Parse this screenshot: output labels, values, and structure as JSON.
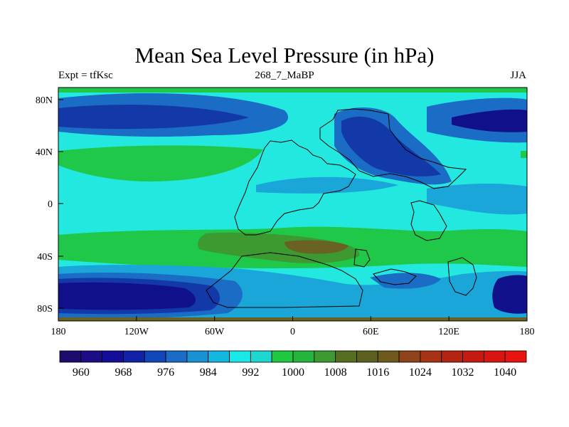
{
  "title": "Mean Sea Level Pressure (in hPa)",
  "subtitle_left": "Expt = tfKsc",
  "subtitle_center": "268_7_MaBP",
  "subtitle_right": "JJA",
  "lat_labels": [
    "80N",
    "40N",
    "0",
    "40S",
    "80S"
  ],
  "lon_labels": [
    "180",
    "120W",
    "60W",
    "0",
    "60E",
    "120E",
    "180"
  ],
  "colorbar": {
    "labels": [
      "960",
      "968",
      "976",
      "984",
      "992",
      "1000",
      "1008",
      "1016",
      "1024",
      "1032",
      "1040"
    ],
    "colors": [
      "#1f0a6e",
      "#1a0d86",
      "#140d9a",
      "#1222a8",
      "#1147b8",
      "#1a6cc4",
      "#1992d4",
      "#12b8e0",
      "#19e8e8",
      "#1dd8d0",
      "#20c840",
      "#24b63a",
      "#3c9a30",
      "#566e20",
      "#5c6020",
      "#6e5a1c",
      "#8e4418",
      "#a63414",
      "#b42412",
      "#c41a10",
      "#d81510",
      "#e8140e"
    ]
  },
  "colors": {
    "deep_low": "#10108a",
    "low": "#1338a8",
    "mid_low": "#1a6cc4",
    "light_low": "#1aa6d8",
    "base": "#22e8e0",
    "high": "#20c84a",
    "higher": "#3c9a30",
    "highest": "#6a6222"
  }
}
